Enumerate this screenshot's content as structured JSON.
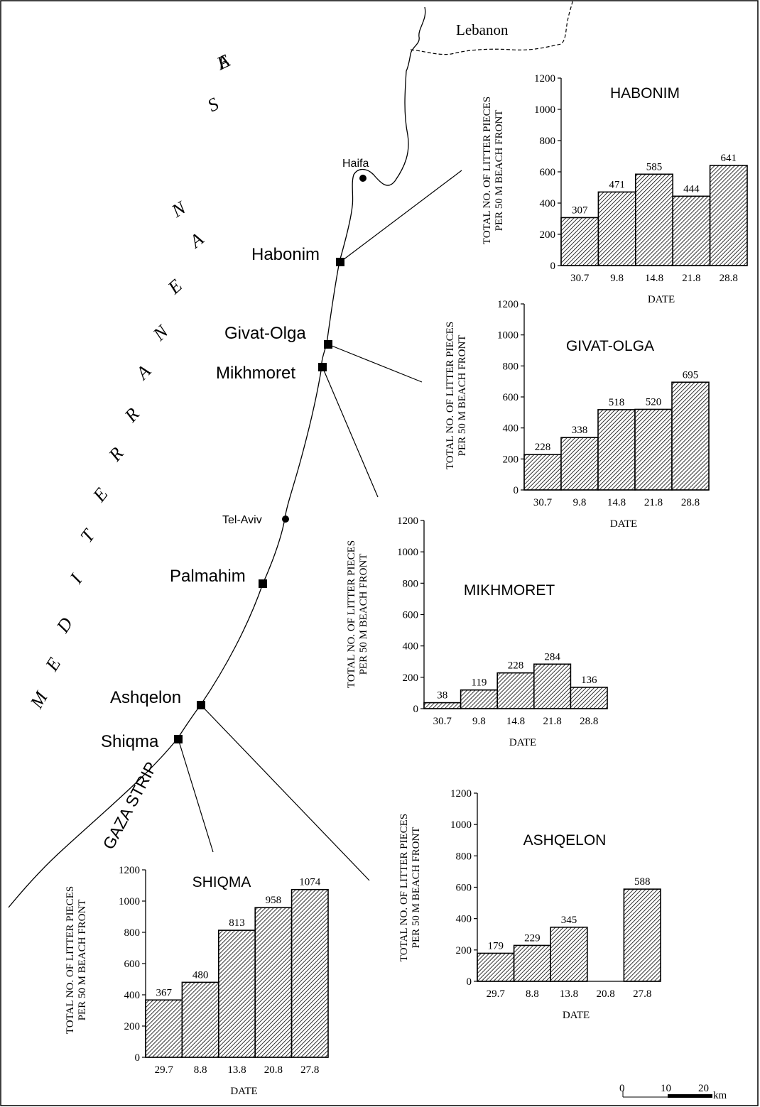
{
  "map": {
    "country_label": "Lebanon",
    "sea_label": "MEDITERRANEAN SEA",
    "gaza_label": "GAZA STRIP",
    "cities": [
      {
        "name": "Haifa"
      },
      {
        "name": "Tel-Aviv"
      }
    ],
    "sites": [
      {
        "name": "Habonim"
      },
      {
        "name": "Givat-Olga"
      },
      {
        "name": "Mikhmoret"
      },
      {
        "name": "Palmahim"
      },
      {
        "name": "Ashqelon"
      },
      {
        "name": "Shiqma"
      }
    ],
    "scale_bar": {
      "labels": [
        "0",
        "10",
        "20"
      ],
      "unit": "km"
    }
  },
  "chart_data": [
    {
      "type": "bar",
      "title": "HABONIM",
      "categories": [
        "30.7",
        "9.8",
        "14.8",
        "21.8",
        "28.8"
      ],
      "values": [
        307,
        471,
        585,
        444,
        641
      ],
      "value_labels": [
        "307",
        "471",
        "585",
        "444",
        "641"
      ],
      "xlabel": "DATE",
      "ylabel_line1": "TOTAL NO.  OF  LITTER PIECES",
      "ylabel_line2": "PER 50 M BEACH FRONT",
      "ylim": [
        0,
        1200
      ],
      "yticks": [
        "0",
        "200",
        "400",
        "600",
        "800",
        "1000",
        "1200"
      ],
      "fill": "diagonal hatch"
    },
    {
      "type": "bar",
      "title": "GIVAT-OLGA",
      "categories": [
        "30.7",
        "9.8",
        "14.8",
        "21.8",
        "28.8"
      ],
      "values": [
        228,
        338,
        518,
        520,
        695
      ],
      "value_labels": [
        "228",
        "338",
        "518",
        "520",
        "695"
      ],
      "xlabel": "DATE",
      "ylabel_line1": "TOTAL NO.  OF  LITTER PIECES",
      "ylabel_line2": "PER 50 M BEACH FRONT",
      "ylim": [
        0,
        1200
      ],
      "yticks": [
        "0",
        "200",
        "400",
        "600",
        "800",
        "1000",
        "1200"
      ],
      "fill": "diagonal hatch"
    },
    {
      "type": "bar",
      "title": "MIKHMORET",
      "categories": [
        "30.7",
        "9.8",
        "14.8",
        "21.8",
        "28.8"
      ],
      "values": [
        38,
        119,
        228,
        284,
        136
      ],
      "value_labels": [
        "38",
        "119",
        "228",
        "284",
        "136"
      ],
      "xlabel": "DATE",
      "ylabel_line1": "TOTAL NO.  OF  LITTER PIECES",
      "ylabel_line2": "PER 50 M BEACH FRONT",
      "ylim": [
        0,
        1200
      ],
      "yticks": [
        "0",
        "200",
        "400",
        "600",
        "800",
        "1000",
        "1200"
      ],
      "fill": "diagonal hatch"
    },
    {
      "type": "bar",
      "title": "ASHQELON",
      "categories": [
        "29.7",
        "8.8",
        "13.8",
        "20.8",
        "27.8"
      ],
      "values": [
        179,
        229,
        345,
        null,
        588
      ],
      "value_labels": [
        "179",
        "229",
        "345",
        "",
        "588"
      ],
      "xlabel": "DATE",
      "ylabel_line1": "TOTAL NO.  OF  LITTER PIECES",
      "ylabel_line2": "PER 50 M BEACH FRONT",
      "ylim": [
        0,
        1200
      ],
      "yticks": [
        "0",
        "200",
        "400",
        "600",
        "800",
        "1000",
        "1200"
      ],
      "fill": "diagonal hatch"
    },
    {
      "type": "bar",
      "title": "SHIQMA",
      "categories": [
        "29.7",
        "8.8",
        "13.8",
        "20.8",
        "27.8"
      ],
      "values": [
        367,
        480,
        813,
        958,
        1074
      ],
      "value_labels": [
        "367",
        "480",
        "813",
        "958",
        "1074"
      ],
      "xlabel": "DATE",
      "ylabel_line1": "TOTAL NO.  OF  LITTER PIECES",
      "ylabel_line2": "PER 50 M BEACH FRONT",
      "ylim": [
        0,
        1200
      ],
      "yticks": [
        "0",
        "200",
        "400",
        "600",
        "800",
        "1000",
        "1200"
      ],
      "fill": "diagonal hatch"
    }
  ]
}
